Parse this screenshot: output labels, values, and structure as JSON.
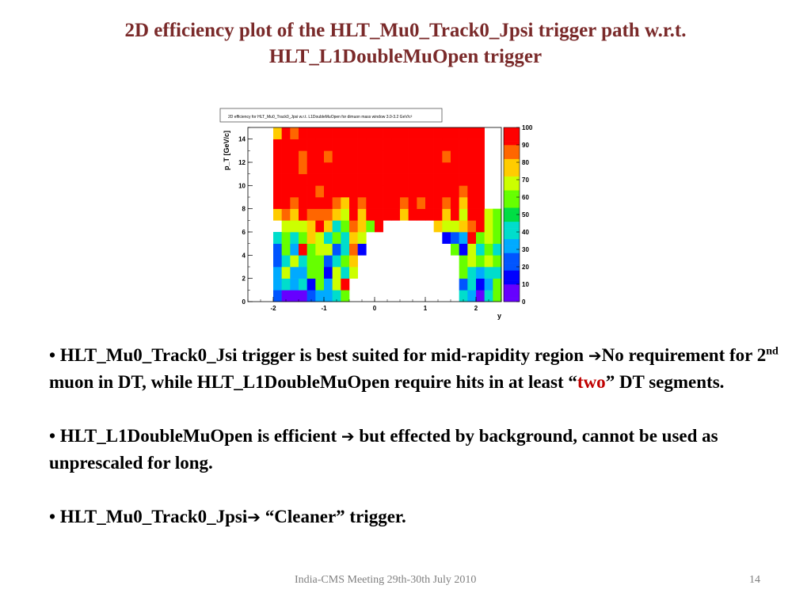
{
  "slide": {
    "title_line1": "2D efficiency plot of the HLT_Mu0_Track0_Jpsi trigger path w.r.t.",
    "title_line2": "HLT_L1DoubleMuOpen trigger"
  },
  "bullets": [
    {
      "bullet": "•",
      "text1": "HLT_Mu0_Track0_Jsi trigger is best suited for mid-rapidity region ",
      "arrow": "➔",
      "text2": "No requirement for 2",
      "sup": "nd",
      "text3": " muon in DT, while HLT_L1DoubleMuOpen require hits in at least “",
      "highlight": "two",
      "text4": "” DT segments."
    },
    {
      "bullet": "•",
      "text1": "HLT_L1DoubleMuOpen is efficient ",
      "arrow": "➔",
      "text2": " but effected by background, cannot be used as unprescaled for long."
    },
    {
      "bullet": "•",
      "text1": "HLT_Mu0_Track0_Jpsi",
      "arrow": "➔",
      "text2": " “Cleaner” trigger."
    }
  ],
  "footer": {
    "center": "India-CMS Meeting 29th-30th July 2010",
    "page_number": "14"
  },
  "chart_data": {
    "type": "heatmap",
    "title": "2D efficiency for HLT_Mu0_Track0_Jpsi w.r.t. L1DoubleMuOpen for dimuon mass window 3.0-3.2 GeV/c²",
    "xlabel": "y",
    "ylabel": "p_T [GeV/c]",
    "xlim": [
      -2.5,
      2.5
    ],
    "ylim": [
      0,
      15
    ],
    "x_ticks": [
      "-2",
      "-1",
      "0",
      "1",
      "2"
    ],
    "y_ticks": [
      "0",
      "2",
      "4",
      "6",
      "8",
      "10",
      "12",
      "14"
    ],
    "z_range": [
      0,
      100
    ],
    "z_ticks": [
      "0",
      "10",
      "20",
      "30",
      "40",
      "50",
      "60",
      "70",
      "80",
      "90",
      "100"
    ],
    "x_bin_width": 0.1667,
    "y_bin_width": 1.0,
    "x_bins_count": 30,
    "y_bins_count": 15,
    "values": [
      [
        null,
        null,
        null,
        25,
        5,
        5,
        5,
        25,
        35,
        35,
        45,
        55,
        null,
        null,
        null,
        null,
        null,
        null,
        null,
        null,
        null,
        null,
        null,
        null,
        null,
        45,
        35,
        5,
        45,
        55
      ],
      [
        null,
        null,
        null,
        35,
        45,
        35,
        45,
        15,
        55,
        35,
        65,
        95,
        null,
        null,
        null,
        null,
        null,
        null,
        null,
        null,
        null,
        null,
        null,
        null,
        null,
        25,
        45,
        15,
        35,
        55
      ],
      [
        null,
        null,
        null,
        35,
        65,
        35,
        35,
        55,
        55,
        15,
        65,
        45,
        70,
        null,
        null,
        null,
        null,
        null,
        null,
        null,
        null,
        null,
        null,
        null,
        null,
        55,
        45,
        35,
        45,
        45
      ],
      [
        null,
        null,
        null,
        25,
        45,
        65,
        45,
        55,
        55,
        25,
        45,
        55,
        75,
        null,
        null,
        null,
        null,
        null,
        null,
        null,
        null,
        null,
        null,
        null,
        null,
        55,
        65,
        55,
        65,
        55
      ],
      [
        null,
        null,
        null,
        25,
        55,
        35,
        95,
        55,
        65,
        65,
        25,
        45,
        85,
        10,
        null,
        null,
        null,
        null,
        null,
        null,
        null,
        null,
        null,
        null,
        55,
        15,
        65,
        45,
        55,
        45
      ],
      [
        null,
        null,
        null,
        45,
        55,
        45,
        55,
        75,
        65,
        45,
        55,
        45,
        75,
        65,
        null,
        null,
        null,
        null,
        null,
        null,
        null,
        null,
        null,
        15,
        25,
        35,
        95,
        55,
        65,
        55
      ],
      [
        null,
        null,
        null,
        null,
        65,
        65,
        65,
        75,
        95,
        75,
        45,
        55,
        85,
        75,
        55,
        95,
        null,
        null,
        null,
        null,
        null,
        null,
        75,
        65,
        65,
        75,
        85,
        95,
        65,
        55
      ],
      [
        null,
        null,
        null,
        75,
        85,
        75,
        95,
        85,
        85,
        85,
        75,
        65,
        95,
        75,
        95,
        95,
        95,
        95,
        75,
        95,
        95,
        95,
        95,
        75,
        95,
        65,
        95,
        95,
        65,
        55
      ],
      [
        null,
        null,
        null,
        95,
        95,
        85,
        95,
        95,
        95,
        95,
        85,
        75,
        95,
        85,
        95,
        95,
        95,
        95,
        85,
        95,
        85,
        95,
        95,
        85,
        95,
        75,
        95,
        95,
        null,
        null
      ],
      [
        null,
        null,
        null,
        95,
        95,
        95,
        95,
        95,
        85,
        95,
        95,
        95,
        95,
        95,
        95,
        95,
        95,
        95,
        95,
        95,
        95,
        95,
        95,
        95,
        95,
        85,
        95,
        95,
        null,
        null
      ],
      [
        null,
        null,
        null,
        95,
        95,
        95,
        95,
        95,
        95,
        95,
        95,
        95,
        95,
        95,
        95,
        95,
        95,
        95,
        95,
        95,
        95,
        95,
        95,
        95,
        95,
        95,
        95,
        95,
        null,
        null
      ],
      [
        null,
        null,
        null,
        95,
        95,
        95,
        85,
        95,
        95,
        95,
        95,
        95,
        95,
        95,
        95,
        95,
        95,
        95,
        95,
        95,
        95,
        95,
        95,
        95,
        95,
        95,
        95,
        95,
        null,
        null
      ],
      [
        null,
        null,
        null,
        95,
        95,
        95,
        85,
        95,
        95,
        85,
        95,
        95,
        95,
        95,
        95,
        95,
        95,
        95,
        95,
        95,
        95,
        95,
        95,
        85,
        95,
        95,
        95,
        95,
        null,
        null
      ],
      [
        null,
        null,
        null,
        95,
        95,
        95,
        95,
        95,
        95,
        95,
        95,
        95,
        95,
        95,
        95,
        95,
        95,
        95,
        95,
        95,
        95,
        95,
        95,
        95,
        95,
        95,
        95,
        95,
        null,
        null
      ],
      [
        null,
        null,
        null,
        75,
        95,
        85,
        95,
        95,
        95,
        95,
        95,
        95,
        95,
        95,
        95,
        95,
        95,
        95,
        95,
        95,
        95,
        95,
        95,
        95,
        95,
        95,
        95,
        95,
        null,
        null
      ]
    ],
    "grid": false,
    "colorbar": "right",
    "colorbar_colors": [
      "#6600ff",
      "#0000ff",
      "#0055ff",
      "#00aaff",
      "#00ddcc",
      "#00dd44",
      "#66ff00",
      "#ccff00",
      "#ffcc00",
      "#ff6600",
      "#ff0000"
    ]
  }
}
